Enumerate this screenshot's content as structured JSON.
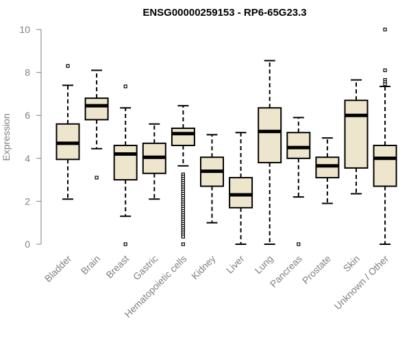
{
  "chart_data": {
    "type": "boxplot",
    "title": "ENSG00000259153 - RP6-65G23.3",
    "xlabel": "",
    "ylabel": "Expression",
    "ylim": [
      0,
      10
    ],
    "yticks": [
      0,
      2,
      4,
      6,
      8,
      10
    ],
    "categories": [
      "Bladder",
      "Brain",
      "Breast",
      "Gastric",
      "Hematopoietic cells",
      "Kidney",
      "Liver",
      "Lung",
      "Pancreas",
      "Prostate",
      "Skin",
      "Unknown / Other"
    ],
    "boxes": [
      {
        "min": 2.1,
        "q1": 3.95,
        "median": 4.7,
        "q3": 5.6,
        "max": 7.4,
        "outliers": [
          8.3
        ]
      },
      {
        "min": 4.45,
        "q1": 5.8,
        "median": 6.45,
        "q3": 6.8,
        "max": 8.1,
        "outliers": [
          3.1
        ]
      },
      {
        "min": 1.3,
        "q1": 3.0,
        "median": 4.2,
        "q3": 4.6,
        "max": 6.35,
        "outliers": [
          7.35,
          0.0
        ]
      },
      {
        "min": 2.1,
        "q1": 3.3,
        "median": 4.05,
        "q3": 4.7,
        "max": 5.6,
        "outliers": []
      },
      {
        "min": 3.65,
        "q1": 4.6,
        "median": 5.15,
        "q3": 5.4,
        "max": 6.45,
        "outliers": [
          3.25,
          3.15,
          3.05,
          2.95,
          2.85,
          2.75,
          2.65,
          2.55,
          2.45,
          2.35,
          2.25,
          2.15,
          2.05,
          1.95,
          1.85,
          1.75,
          1.65,
          1.55,
          1.45,
          1.35,
          1.25,
          1.15,
          1.05,
          0.95,
          0.85,
          0.75,
          0.65,
          0.55,
          0.45,
          0.35,
          0.0
        ]
      },
      {
        "min": 1.0,
        "q1": 2.7,
        "median": 3.4,
        "q3": 4.05,
        "max": 5.1,
        "outliers": []
      },
      {
        "min": 0.0,
        "q1": 1.7,
        "median": 2.3,
        "q3": 3.1,
        "max": 5.2,
        "outliers": []
      },
      {
        "min": 0.0,
        "q1": 3.8,
        "median": 5.25,
        "q3": 6.35,
        "max": 8.55,
        "outliers": []
      },
      {
        "min": 2.2,
        "q1": 4.0,
        "median": 4.5,
        "q3": 5.2,
        "max": 5.9,
        "outliers": [
          0.0
        ]
      },
      {
        "min": 1.9,
        "q1": 3.1,
        "median": 3.65,
        "q3": 4.05,
        "max": 4.95,
        "outliers": []
      },
      {
        "min": 2.35,
        "q1": 3.55,
        "median": 6.0,
        "q3": 6.7,
        "max": 7.65,
        "outliers": []
      },
      {
        "min": 0.0,
        "q1": 2.7,
        "median": 4.0,
        "q3": 4.6,
        "max": 7.35,
        "outliers": [
          10.0,
          8.1,
          7.65,
          7.55,
          7.45
        ]
      }
    ]
  }
}
